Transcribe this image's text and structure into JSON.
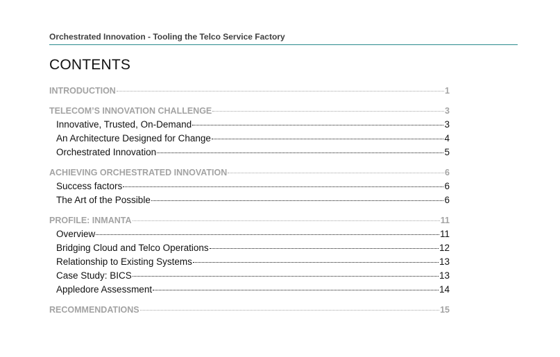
{
  "header": {
    "text": "Orchestrated  Innovation - Tooling the Telco Service Factory"
  },
  "title": "CONTENTS",
  "toc": {
    "s1": {
      "label": "INTRODUCTION",
      "page": "1"
    },
    "s2": {
      "label": "TELECOM’S INNOVATION CHALLENGE",
      "page": "3",
      "items": [
        {
          "label": "Innovative, Trusted, On-Demand",
          "page": "3"
        },
        {
          "label": "An Architecture Designed for Change",
          "page": "4"
        },
        {
          "label": "Orchestrated Innovation",
          "page": "5"
        }
      ]
    },
    "s3": {
      "label": "ACHIEVING ORCHESTRATED INNOVATION",
      "page": "6",
      "items": [
        {
          "label": "Success factors",
          "page": "6"
        },
        {
          "label": "The Art of the Possible",
          "page": "6"
        }
      ]
    },
    "s4": {
      "label": "PROFILE: INMANTA",
      "page": "11",
      "items": [
        {
          "label": "Overview",
          "page": "11"
        },
        {
          "label": "Bridging Cloud and Telco Operations",
          "page": "12"
        },
        {
          "label": "Relationship to Existing Systems",
          "page": "13"
        },
        {
          "label": "Case Study: BICS",
          "page": "13"
        },
        {
          "label": "Appledore Assessment",
          "page": "14"
        }
      ]
    },
    "s5": {
      "label": "RECOMMENDATIONS",
      "page": "15"
    }
  }
}
